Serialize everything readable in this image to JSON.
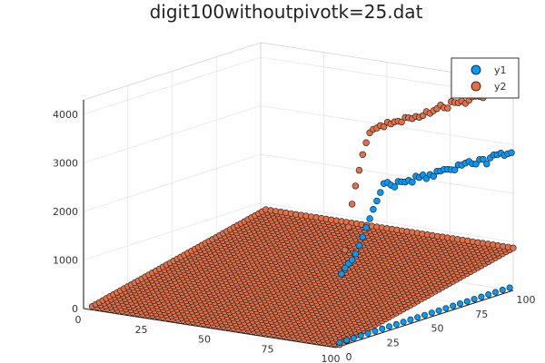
{
  "chart_data": {
    "type": "scatter3d",
    "title": "digit100withoutpivotk=25.dat",
    "x_ticks": [
      "0",
      "25",
      "50",
      "75",
      "100"
    ],
    "y_ticks": [
      "0",
      "25",
      "50",
      "75",
      "100"
    ],
    "z_ticks": [
      "0",
      "1000",
      "2000",
      "3000",
      "4000"
    ],
    "xlim": [
      0,
      100
    ],
    "ylim": [
      0,
      100
    ],
    "zlim": [
      0,
      4300
    ],
    "legend_position": "top-right",
    "grid": true,
    "series": [
      {
        "name": "y1",
        "color": "#009af9",
        "x": 100,
        "y": [
          3,
          5,
          7,
          9,
          11,
          13,
          15,
          17,
          19,
          21,
          23,
          25,
          27,
          29,
          31,
          33,
          35,
          37,
          39,
          41,
          43,
          45,
          47,
          49,
          51,
          53,
          55,
          57,
          59,
          61,
          63,
          65,
          67,
          69,
          71,
          73,
          75,
          77,
          79,
          81,
          83,
          85,
          87,
          89,
          91,
          93,
          95,
          97,
          99
        ],
        "z": [
          1480,
          1580,
          1650,
          1700,
          1800,
          1950,
          2100,
          2270,
          2430,
          2600,
          2750,
          2900,
          3060,
          3060,
          2980,
          2920,
          3010,
          2980,
          2950,
          2960,
          2900,
          3000,
          2950,
          2980,
          2880,
          2940,
          2880,
          2960,
          2940,
          2950,
          2930,
          2900,
          2870,
          2950,
          2920,
          2940,
          2950,
          2880,
          2850,
          2920,
          2900,
          2780,
          2880,
          2920,
          2900,
          2910,
          2840,
          2850,
          2850
        ],
        "floor_z": 0
      },
      {
        "name": "y2",
        "color": "#e26f46",
        "x": 100,
        "y": [
          3,
          5,
          7,
          9,
          11,
          13,
          15,
          17,
          19,
          21,
          23,
          25,
          27,
          29,
          31,
          33,
          35,
          37,
          39,
          41,
          43,
          45,
          47,
          49,
          51,
          53,
          55,
          57,
          59,
          61,
          63,
          65,
          67,
          69,
          71,
          73,
          75,
          77,
          79,
          81,
          83,
          85,
          87,
          89,
          91,
          93,
          95,
          97,
          99
        ],
        "z": [
          1480,
          1950,
          2400,
          2850,
          3200,
          3500,
          3800,
          4020,
          4200,
          4250,
          4250,
          4280,
          4230,
          4300,
          4240,
          4260,
          4250,
          4210,
          4280,
          4250,
          4210,
          4230,
          4190,
          4200,
          4260,
          4200,
          4230,
          4250,
          4300,
          4220,
          4190,
          4300,
          4260,
          4230,
          4240,
          4170,
          4210,
          4260,
          4250,
          4220,
          4170,
          4230,
          4200,
          4240,
          4170,
          4260,
          4220,
          4280,
          4230
        ],
        "floor_z_max": 900
      }
    ]
  }
}
